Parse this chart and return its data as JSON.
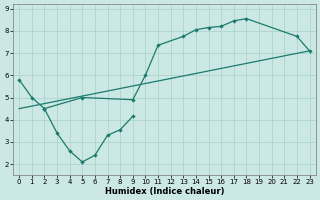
{
  "xlabel": "Humidex (Indice chaleur)",
  "xlim": [
    -0.5,
    23.5
  ],
  "ylim": [
    1.5,
    9.2
  ],
  "xticks": [
    0,
    1,
    2,
    3,
    4,
    5,
    6,
    7,
    8,
    9,
    10,
    11,
    12,
    13,
    14,
    15,
    16,
    17,
    18,
    19,
    20,
    21,
    22,
    23
  ],
  "yticks": [
    2,
    3,
    4,
    5,
    6,
    7,
    8,
    9
  ],
  "bg_color": "#cce8e4",
  "line_color": "#1a7a6e",
  "grid_color": "#aed4ce",
  "line1_x": [
    0,
    1,
    2,
    5,
    9,
    10,
    11,
    13,
    14,
    15,
    16,
    17,
    18,
    22,
    23
  ],
  "line1_y": [
    5.8,
    5.0,
    4.5,
    5.0,
    4.9,
    6.0,
    7.35,
    7.75,
    8.05,
    8.15,
    8.2,
    8.45,
    8.55,
    7.75,
    7.1
  ],
  "line2_x": [
    2,
    3,
    4,
    5,
    6,
    7,
    8,
    9
  ],
  "line2_y": [
    4.5,
    3.4,
    2.6,
    2.1,
    2.4,
    3.3,
    3.55,
    4.15
  ],
  "line3_x": [
    0,
    23
  ],
  "line3_y": [
    4.5,
    7.1
  ]
}
